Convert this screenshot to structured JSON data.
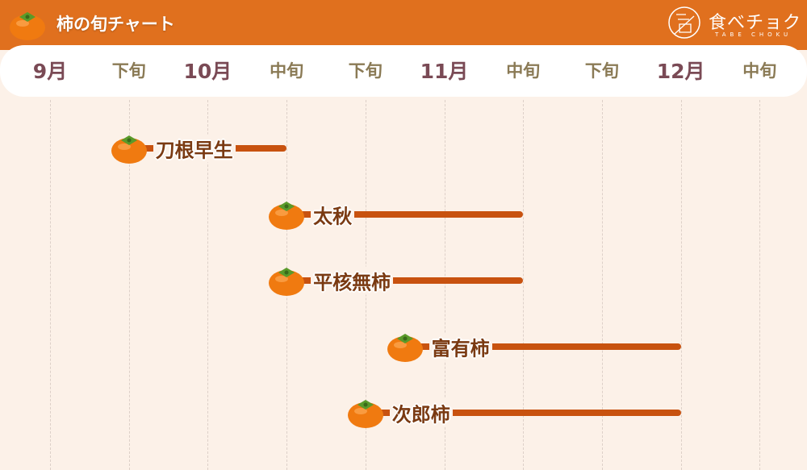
{
  "header": {
    "title": "柿の旬チャート",
    "logo_text": "食べチョク",
    "logo_sub": "TABE CHOKU"
  },
  "colors": {
    "header": "#e0701e",
    "bar": "#c8520f",
    "label": "#7a3a12",
    "background": "#fcf1e8"
  },
  "chart_data": {
    "type": "gantt",
    "categories": [
      "9月",
      "下旬",
      "10月",
      "中旬",
      "下旬",
      "11月",
      "中旬",
      "下旬",
      "12月",
      "中旬"
    ],
    "category_kinds": [
      "month",
      "period",
      "month",
      "period",
      "period",
      "month",
      "period",
      "period",
      "month",
      "period"
    ],
    "series": [
      {
        "name": "刀根早生",
        "start": "9月下旬",
        "end": "10月中旬",
        "start_index": 1,
        "end_index": 3
      },
      {
        "name": "太秋",
        "start": "10月中旬",
        "end": "11月中旬",
        "start_index": 3,
        "end_index": 6
      },
      {
        "name": "平核無柿",
        "start": "10月中旬",
        "end": "11月中旬",
        "start_index": 3,
        "end_index": 6
      },
      {
        "name": "富有柿",
        "start": "10月下旬〜11月上旬",
        "end": "12月",
        "start_index": 4.5,
        "end_index": 8
      },
      {
        "name": "次郎柿",
        "start": "10月下旬",
        "end": "12月",
        "start_index": 4,
        "end_index": 8
      }
    ],
    "grid": true
  }
}
